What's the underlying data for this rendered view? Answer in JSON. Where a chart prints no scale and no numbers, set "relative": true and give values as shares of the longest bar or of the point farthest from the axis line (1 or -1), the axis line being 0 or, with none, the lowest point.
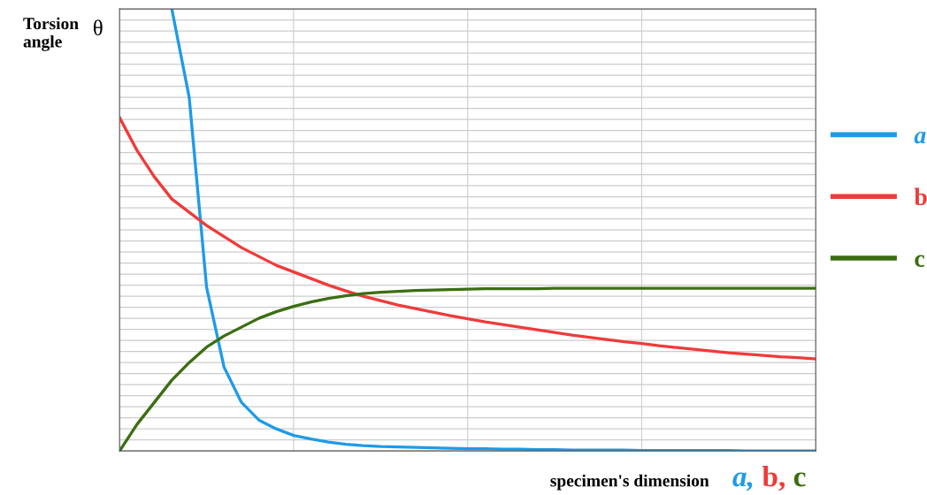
{
  "chart_data": {
    "type": "line",
    "relative": true,
    "ylabel": "Torsion angle",
    "xlabel": "specimen's dimension",
    "annotations": [
      "θ",
      "a, b, c"
    ],
    "categories": [
      null,
      null,
      null,
      null,
      null,
      null,
      null,
      null,
      null,
      null,
      null,
      null,
      null,
      null,
      null,
      null,
      null,
      null,
      null,
      null,
      null,
      null,
      null,
      null,
      null,
      null,
      null,
      null,
      null,
      null,
      null,
      null,
      null,
      null,
      null,
      null,
      null,
      null,
      null,
      null,
      null
    ],
    "series": [
      {
        "name": "a",
        "color": "#1e9be8",
        "values": [
          null,
          null,
          null,
          1,
          0.8,
          0.37,
          0.19,
          0.11,
          0.07,
          0.05,
          0.035,
          0.027,
          0.02,
          0.015,
          0.012,
          0.01,
          0.009,
          0.008,
          0.007,
          0.006,
          0.005,
          0.005,
          0.004,
          0.004,
          0.003,
          0.003,
          0.002,
          0.002,
          0.002,
          0.002,
          0.001,
          0.001,
          0.001,
          0.001,
          0.001,
          0.001,
          0.0,
          0.0,
          0.0,
          0.0,
          0.0
        ]
      },
      {
        "name": "b",
        "color": "#f03a3a",
        "values": [
          0.754,
          0.68,
          0.62,
          0.57,
          0.54,
          0.51,
          0.485,
          0.46,
          0.44,
          0.42,
          0.405,
          0.39,
          0.375,
          0.362,
          0.35,
          0.34,
          0.33,
          0.322,
          0.314,
          0.306,
          0.299,
          0.292,
          0.286,
          0.28,
          0.274,
          0.268,
          0.262,
          0.257,
          0.252,
          0.247,
          0.243,
          0.238,
          0.234,
          0.23,
          0.226,
          0.222,
          0.219,
          0.216,
          0.213,
          0.211,
          0.208
        ]
      },
      {
        "name": "c",
        "color": "#3b6e12",
        "values": [
          0,
          0.06,
          0.11,
          0.16,
          0.2,
          0.235,
          0.26,
          0.28,
          0.3,
          0.315,
          0.327,
          0.337,
          0.345,
          0.351,
          0.356,
          0.359,
          0.361,
          0.363,
          0.364,
          0.365,
          0.366,
          0.367,
          0.367,
          0.367,
          0.367,
          0.368,
          0.368,
          0.368,
          0.368,
          0.368,
          0.368,
          0.368,
          0.368,
          0.368,
          0.368,
          0.368,
          0.368,
          0.368,
          0.368,
          0.368,
          0.368
        ]
      }
    ],
    "grid": true,
    "legend": "right",
    "line_style": "solid",
    "marker": "none"
  }
}
